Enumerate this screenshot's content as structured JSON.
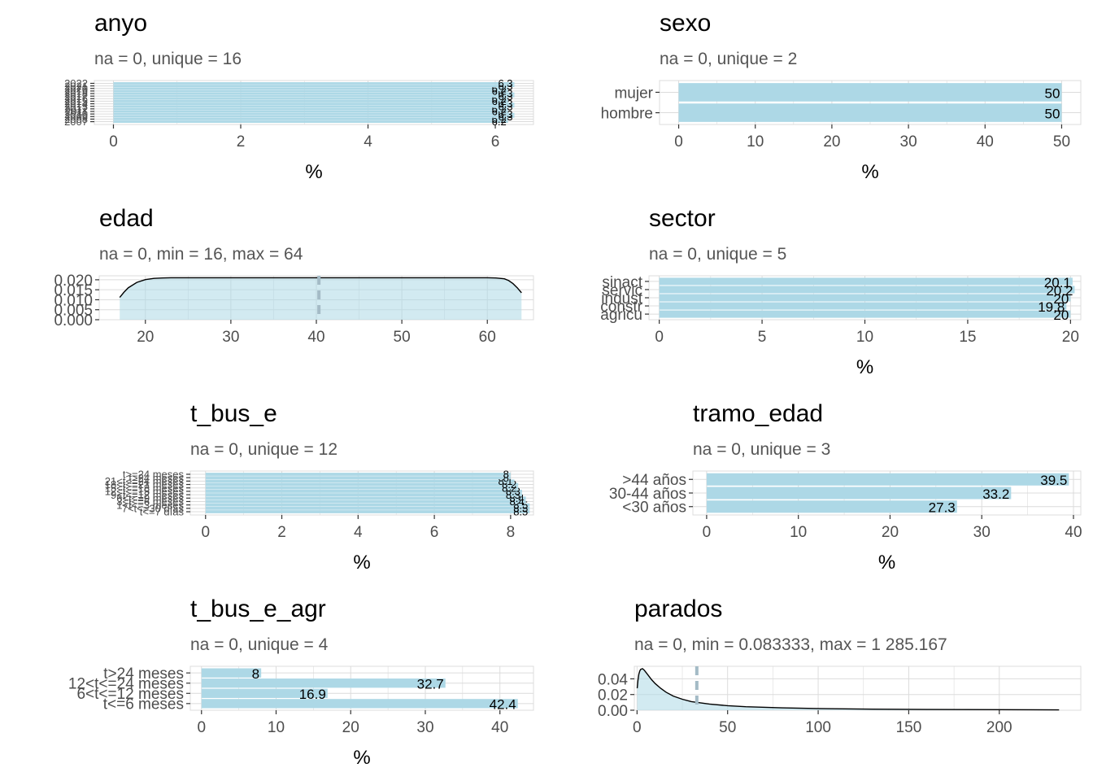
{
  "colors": {
    "bar": "#ADD8E6",
    "grid": "#DCDCDC",
    "axis": "#4D4D4D",
    "meanline": "#A4BBC6"
  },
  "chart_data": [
    {
      "id": "anyo",
      "type": "bar",
      "orientation": "horizontal",
      "title": "anyo",
      "subtitle": "na = 0, unique = 16",
      "xlabel": "%",
      "xlim": [
        -0.3,
        6.6
      ],
      "xticks": [
        0,
        2,
        4,
        6
      ],
      "categories": [
        "2007",
        "2008",
        "2009",
        "2010",
        "2011",
        "2012",
        "2013",
        "2014",
        "2015",
        "2016",
        "2017",
        "2018",
        "2019",
        "2020",
        "2021",
        "2022"
      ],
      "values": [
        6.2,
        6.2,
        6.3,
        6.3,
        6.2,
        6.2,
        6.3,
        6.3,
        6.2,
        6.2,
        6.3,
        6.3,
        6.2,
        6.2,
        6.3,
        6.3
      ]
    },
    {
      "id": "sexo",
      "type": "bar",
      "orientation": "horizontal",
      "title": "sexo",
      "subtitle": "na = 0, unique = 2",
      "xlabel": "%",
      "xlim": [
        -2.5,
        52.5
      ],
      "xticks": [
        0,
        10,
        20,
        30,
        40,
        50
      ],
      "categories": [
        "hombre",
        "mujer"
      ],
      "values": [
        50,
        50
      ]
    },
    {
      "id": "edad",
      "type": "area",
      "title": "edad",
      "subtitle": "na = 0, min = 16, max = 64",
      "xlim": [
        14.6,
        65.4
      ],
      "xticks": [
        20,
        30,
        40,
        50,
        60
      ],
      "ylim": [
        0,
        0.022
      ],
      "yticks": [
        0,
        0.005,
        0.01,
        0.015,
        0.02
      ],
      "yticklabels": [
        "0.000",
        "0.005",
        "0.010",
        "0.015",
        "0.020"
      ],
      "mean": 40.3,
      "x": [
        17,
        17.5,
        18,
        19,
        20,
        21,
        22,
        23,
        25,
        30,
        40,
        50,
        60,
        61,
        62,
        62.5,
        63,
        63.5,
        64
      ],
      "y": [
        0.0112,
        0.0138,
        0.016,
        0.0187,
        0.0201,
        0.0207,
        0.0209,
        0.021,
        0.021,
        0.021,
        0.021,
        0.021,
        0.021,
        0.0209,
        0.0205,
        0.0196,
        0.0181,
        0.016,
        0.0135
      ]
    },
    {
      "id": "sector",
      "type": "bar",
      "orientation": "horizontal",
      "title": "sector",
      "subtitle": "na = 0, unique = 5",
      "xlabel": "%",
      "xlim": [
        -0.5,
        20.5
      ],
      "xticks": [
        0,
        5,
        10,
        15,
        20
      ],
      "categories": [
        "agricu",
        "constr",
        "indust",
        "servic",
        "sinact"
      ],
      "values": [
        20,
        19.8,
        20,
        20.2,
        20.1
      ]
    },
    {
      "id": "t_bus_e",
      "type": "bar",
      "orientation": "horizontal",
      "title": "t_bus_e",
      "subtitle": "na = 0, unique = 12",
      "xlabel": "%",
      "xlim": [
        -0.4,
        8.6
      ],
      "xticks": [
        0,
        2,
        4,
        6,
        8
      ],
      "categories": [
        "t<=7 días",
        "7<t<=30 días",
        "1<t<=3 meses",
        "3<t<=6 meses",
        "6<t<=9 meses",
        "9<t<=12 meses",
        "12<t<=15 meses",
        "15<t<=18 meses",
        "18<t<=21 meses",
        "21<t<=24 meses",
        "t>24 meses",
        "t>=24 meses"
      ],
      "values": [
        8.5,
        8.5,
        8.5,
        8.4,
        8.4,
        8.3,
        8.3,
        8.2,
        8.2,
        8.1,
        8.0,
        8.0
      ]
    },
    {
      "id": "tramo_edad",
      "type": "bar",
      "orientation": "horizontal",
      "title": "tramo_edad",
      "subtitle": "na = 0, unique = 3",
      "xlabel": "%",
      "xlim": [
        -1.5,
        40.8
      ],
      "xticks": [
        0,
        10,
        20,
        30,
        40
      ],
      "categories": [
        "<30 años",
        "30-44 años",
        ">44 años"
      ],
      "values": [
        27.3,
        33.2,
        39.5
      ]
    },
    {
      "id": "t_bus_e_agr",
      "type": "bar",
      "orientation": "horizontal",
      "title": "t_bus_e_agr",
      "subtitle": "na = 0, unique = 4",
      "xlabel": "%",
      "xlim": [
        -1.5,
        44.5
      ],
      "xticks": [
        0,
        10,
        20,
        30,
        40
      ],
      "categories": [
        "t<=6 meses",
        "6<t<=12 meses",
        "12<t<=24 meses",
        "t>24 meses"
      ],
      "values": [
        42.4,
        16.9,
        32.7,
        8
      ]
    },
    {
      "id": "parados",
      "type": "area",
      "title": "parados",
      "subtitle": "na = 0, min = 0.083333, max = 1 285.167",
      "xlim": [
        -1.5,
        245
      ],
      "xticks": [
        0,
        50,
        100,
        150,
        200
      ],
      "ylim": [
        0,
        0.056
      ],
      "yticks": [
        0,
        0.02,
        0.04
      ],
      "yticklabels": [
        "0.00",
        "0.02",
        "0.04"
      ],
      "mean": 33,
      "x": [
        0.08,
        0.5,
        1,
        1.5,
        2,
        3,
        4,
        5,
        6,
        8,
        10,
        13,
        16,
        20,
        25,
        30,
        40,
        50,
        60,
        80,
        100,
        130,
        160,
        200,
        233
      ],
      "y": [
        0.028,
        0.038,
        0.046,
        0.05,
        0.052,
        0.053,
        0.051,
        0.048,
        0.045,
        0.039,
        0.034,
        0.028,
        0.023,
        0.018,
        0.014,
        0.011,
        0.0078,
        0.0058,
        0.0045,
        0.003,
        0.0021,
        0.0014,
        0.001,
        0.0007,
        0.0005
      ]
    }
  ]
}
